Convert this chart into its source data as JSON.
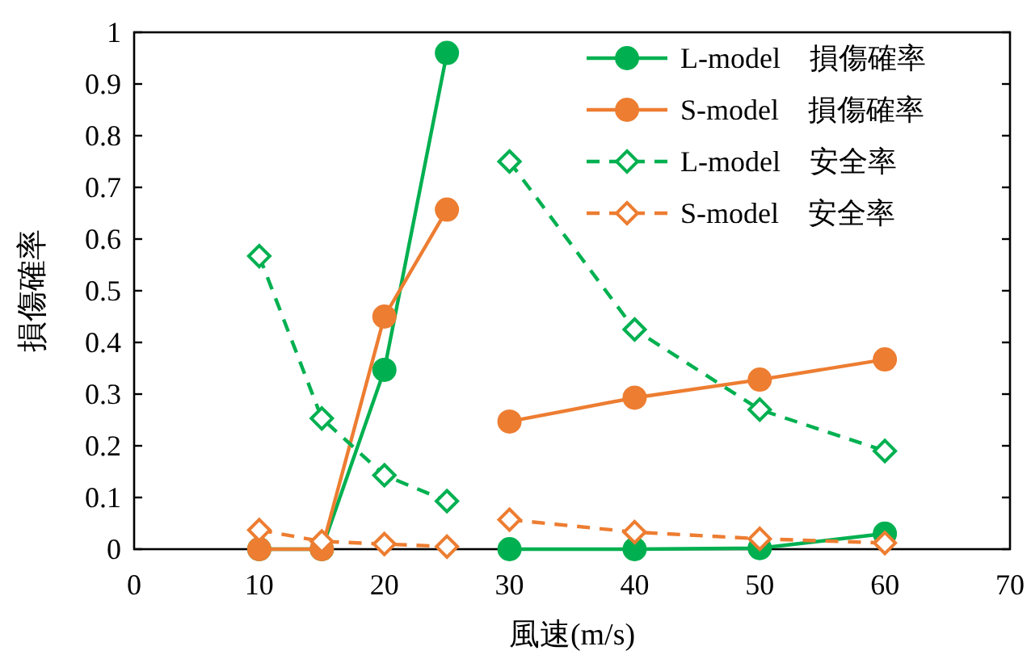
{
  "chart_data": {
    "type": "line",
    "xlabel": "風速(m/s)",
    "ylabel": "損傷確率",
    "xlim": [
      0,
      70
    ],
    "xticks": [
      0,
      10,
      20,
      30,
      40,
      50,
      60,
      70
    ],
    "ylim": [
      0,
      1
    ],
    "yticks": [
      0,
      0.1,
      0.2,
      0.3,
      0.4,
      0.5,
      0.6,
      0.7,
      0.8,
      0.9,
      1
    ],
    "grid": false,
    "legend": "top right",
    "series": [
      {
        "name": "L-model　損傷確率",
        "color": "#00b050",
        "marker": "circle",
        "line_style": "solid",
        "x": [
          10,
          15,
          20,
          25
        ],
        "values": [
          0,
          0,
          0.347,
          0.96
        ]
      },
      {
        "name": "S-model　損傷確率",
        "color": "#ed7d31",
        "marker": "circle",
        "line_style": "solid",
        "x": [
          10,
          15,
          20,
          25
        ],
        "values": [
          0,
          0,
          0.45,
          0.657
        ]
      },
      {
        "name": "L-model　安全率",
        "color": "#00b050",
        "marker": "diamond",
        "line_style": "dashed",
        "x": [
          10,
          15,
          20,
          25
        ],
        "values": [
          0.567,
          0.253,
          0.143,
          0.093
        ]
      },
      {
        "name": "S-model　安全率",
        "color": "#ed7d31",
        "marker": "diamond",
        "line_style": "dashed",
        "x": [
          10,
          15,
          20,
          25
        ],
        "values": [
          0.037,
          0.015,
          0.01,
          0.005
        ]
      },
      {
        "color": "#00b050",
        "marker": "circle",
        "line_style": "solid",
        "x": [
          30,
          40,
          50,
          60
        ],
        "values": [
          0,
          0,
          0.002,
          0.03
        ]
      },
      {
        "color": "#ed7d31",
        "marker": "circle",
        "line_style": "solid",
        "x": [
          30,
          40,
          50,
          60
        ],
        "values": [
          0.247,
          0.293,
          0.328,
          0.367
        ]
      },
      {
        "color": "#00b050",
        "marker": "diamond",
        "line_style": "dashed",
        "x": [
          30,
          40,
          50,
          60
        ],
        "values": [
          0.75,
          0.425,
          0.27,
          0.19
        ]
      },
      {
        "color": "#ed7d31",
        "marker": "diamond",
        "line_style": "dashed",
        "x": [
          30,
          40,
          50,
          60
        ],
        "values": [
          0.057,
          0.033,
          0.02,
          0.012
        ]
      }
    ]
  }
}
